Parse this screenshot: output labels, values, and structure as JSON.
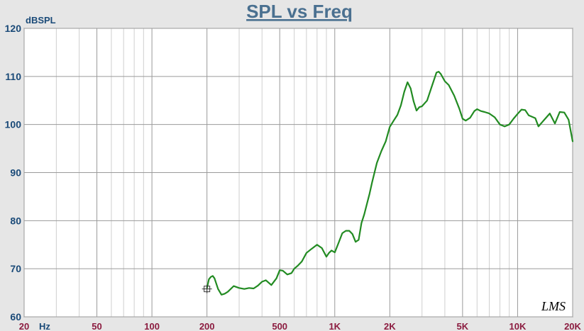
{
  "chart_data": {
    "type": "line",
    "title": "SPL vs Freq",
    "ylabel": "dBSPL",
    "xunit_label": "Hz",
    "xscale": "log",
    "xlim": [
      20,
      20000
    ],
    "ylim": [
      60,
      120
    ],
    "yticks": [
      60,
      70,
      80,
      90,
      100,
      110,
      120
    ],
    "xticks": [
      {
        "value": 20,
        "label": "20"
      },
      {
        "value": 50,
        "label": "50"
      },
      {
        "value": 100,
        "label": "100"
      },
      {
        "value": 200,
        "label": "200"
      },
      {
        "value": 500,
        "label": "500"
      },
      {
        "value": 1000,
        "label": "1K"
      },
      {
        "value": 2000,
        "label": "2K"
      },
      {
        "value": 5000,
        "label": "5K"
      },
      {
        "value": 10000,
        "label": "10K"
      },
      {
        "value": 20000,
        "label": "20K"
      }
    ],
    "grid": true,
    "watermark": "LMS",
    "series": [
      {
        "color": "#228b22",
        "x": [
          200,
          205,
          210,
          215,
          220,
          230,
          240,
          250,
          260,
          280,
          300,
          320,
          340,
          360,
          380,
          400,
          420,
          450,
          480,
          500,
          520,
          550,
          580,
          600,
          630,
          660,
          700,
          750,
          800,
          850,
          880,
          900,
          930,
          960,
          1000,
          1050,
          1100,
          1150,
          1200,
          1250,
          1300,
          1350,
          1400,
          1450,
          1500,
          1550,
          1600,
          1700,
          1800,
          1900,
          2000,
          2100,
          2200,
          2300,
          2400,
          2500,
          2600,
          2700,
          2800,
          2900,
          3000,
          3200,
          3400,
          3600,
          3700,
          3800,
          4000,
          4200,
          4500,
          4800,
          5000,
          5200,
          5500,
          5800,
          6000,
          6300,
          6600,
          7000,
          7500,
          8000,
          8500,
          9000,
          9500,
          10000,
          10500,
          11000,
          11500,
          12000,
          12500,
          13000,
          14000,
          15000,
          16000,
          17000,
          18000,
          19000,
          20000
        ],
        "y": [
          66.0,
          67.8,
          68.3,
          68.5,
          68.0,
          65.8,
          64.6,
          64.8,
          65.2,
          66.4,
          66.0,
          65.8,
          66.0,
          65.9,
          66.5,
          67.3,
          67.6,
          66.6,
          68.0,
          69.7,
          69.6,
          68.8,
          69.1,
          70.0,
          70.7,
          71.5,
          73.3,
          74.2,
          75.0,
          74.3,
          73.2,
          72.5,
          73.3,
          73.8,
          73.4,
          75.4,
          77.4,
          77.9,
          77.9,
          77.2,
          75.6,
          76.0,
          79.5,
          81.3,
          83.5,
          85.6,
          88.0,
          92.0,
          94.5,
          96.5,
          99.5,
          100.8,
          102.0,
          104.0,
          106.8,
          108.8,
          107.5,
          104.8,
          102.9,
          103.6,
          103.8,
          105.0,
          108.0,
          110.8,
          111.0,
          110.5,
          109.0,
          108.2,
          106.0,
          103.3,
          101.2,
          100.8,
          101.4,
          102.8,
          103.2,
          102.8,
          102.6,
          102.3,
          101.5,
          100.0,
          99.6,
          100.0,
          101.2,
          102.2,
          103.1,
          103.0,
          101.9,
          101.6,
          101.3,
          99.6,
          101.0,
          102.3,
          100.2,
          102.6,
          102.5,
          101.0,
          96.5
        ]
      }
    ],
    "markers": [
      {
        "x": 200,
        "y": 65.8
      }
    ]
  }
}
